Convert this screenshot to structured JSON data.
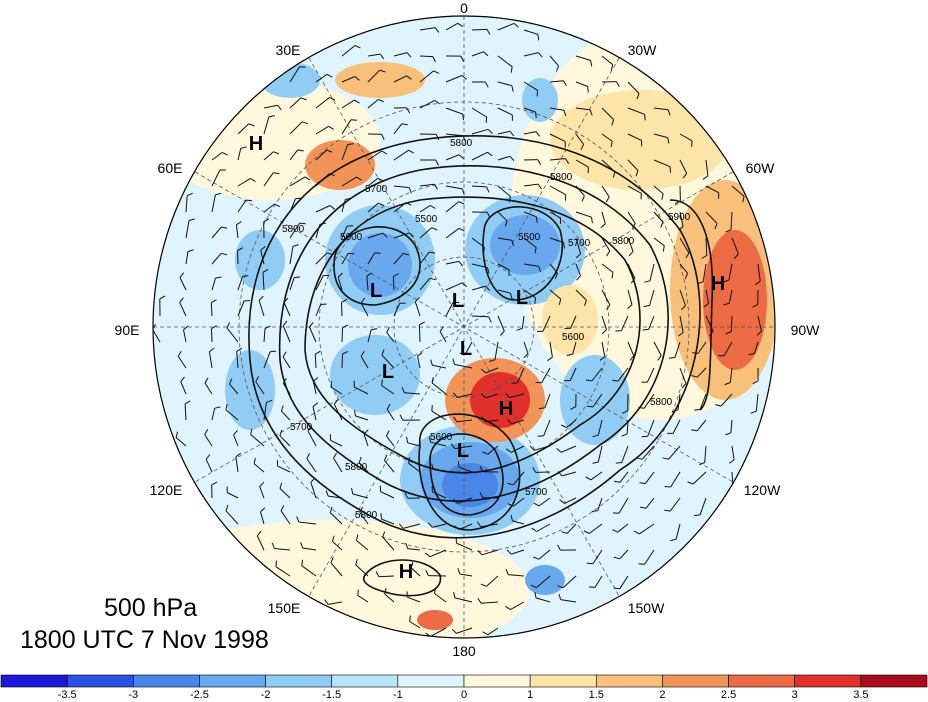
{
  "title": {
    "line1": "500 hPa",
    "line2": "1800 UTC 7 Nov 1998"
  },
  "longitude_labels": [
    "0",
    "30W",
    "60W",
    "90W",
    "120W",
    "150W",
    "180",
    "150E",
    "120E",
    "90E",
    "60E",
    "30E"
  ],
  "pressure_centers": [
    {
      "type": "H",
      "label": "H"
    },
    {
      "type": "L",
      "label": "L"
    },
    {
      "type": "L",
      "label": "L"
    },
    {
      "type": "L",
      "label": "L"
    },
    {
      "type": "H",
      "label": "H"
    },
    {
      "type": "L",
      "label": "L"
    },
    {
      "type": "L",
      "label": "L"
    },
    {
      "type": "H",
      "label": "H"
    },
    {
      "type": "L",
      "label": "L"
    },
    {
      "type": "H",
      "label": "H"
    }
  ],
  "contour_labels": [
    "5800",
    "5800",
    "5800",
    "5700",
    "5600",
    "5500",
    "5800",
    "5900",
    "5700",
    "5600",
    "5500",
    "5700",
    "5700",
    "5800",
    "5800",
    "5600",
    "5800"
  ],
  "colorbar": {
    "ticks": [
      "-3.5",
      "-3",
      "-2.5",
      "-2",
      "-1.5",
      "-1",
      "0",
      "1",
      "1.5",
      "2",
      "2.5",
      "3",
      "3.5"
    ],
    "colors": [
      "#1e18d8",
      "#2a52e0",
      "#4a86e8",
      "#6aa8ee",
      "#90ccf4",
      "#b6e6fa",
      "#dff4fc",
      "#fff8dc",
      "#fde4a8",
      "#f8c07a",
      "#f29458",
      "#ec6a44",
      "#e0302c",
      "#a80c1c"
    ]
  }
}
